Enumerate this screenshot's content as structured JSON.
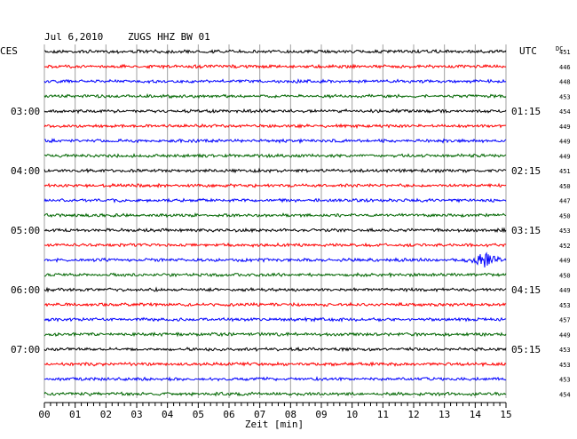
{
  "header": {
    "date": "Jul 6,2010",
    "station": "ZUGS HHZ BW 01",
    "left_zone": "CES",
    "right_zone": "UTC",
    "dc_label": "DC"
  },
  "chart_data": {
    "type": "line",
    "title": "Jul 6,2010   ZUGS HHZ BW 01",
    "xlabel": "Zeit [min]",
    "x_ticks": [
      "00",
      "01",
      "02",
      "03",
      "04",
      "05",
      "06",
      "07",
      "08",
      "09",
      "10",
      "11",
      "12",
      "13",
      "14",
      "15"
    ],
    "xlim": [
      0,
      15
    ],
    "trace_colors": [
      "#000000",
      "#ff0000",
      "#0000ff",
      "#006600"
    ],
    "left_hour_labels": [
      {
        "trace": 4,
        "label": "03:00"
      },
      {
        "trace": 8,
        "label": "04:00"
      },
      {
        "trace": 12,
        "label": "05:00"
      },
      {
        "trace": 16,
        "label": "06:00"
      },
      {
        "trace": 20,
        "label": "07:00"
      }
    ],
    "right_hour_labels": [
      {
        "trace": 4,
        "label": "01:15"
      },
      {
        "trace": 8,
        "label": "02:15"
      },
      {
        "trace": 12,
        "label": "03:15"
      },
      {
        "trace": 16,
        "label": "04:15"
      },
      {
        "trace": 20,
        "label": "05:15"
      }
    ],
    "dc_offsets": [
      "451",
      "446",
      "448",
      "453",
      "454",
      "449",
      "449",
      "449",
      "451",
      "450",
      "447",
      "450",
      "453",
      "452",
      "449",
      "450",
      "449",
      "453",
      "457",
      "449",
      "453",
      "453",
      "453",
      "454"
    ],
    "event": {
      "trace": 14,
      "minute_start": 13.6,
      "minute_peak": 14.3,
      "minute_end": 15.0
    }
  }
}
